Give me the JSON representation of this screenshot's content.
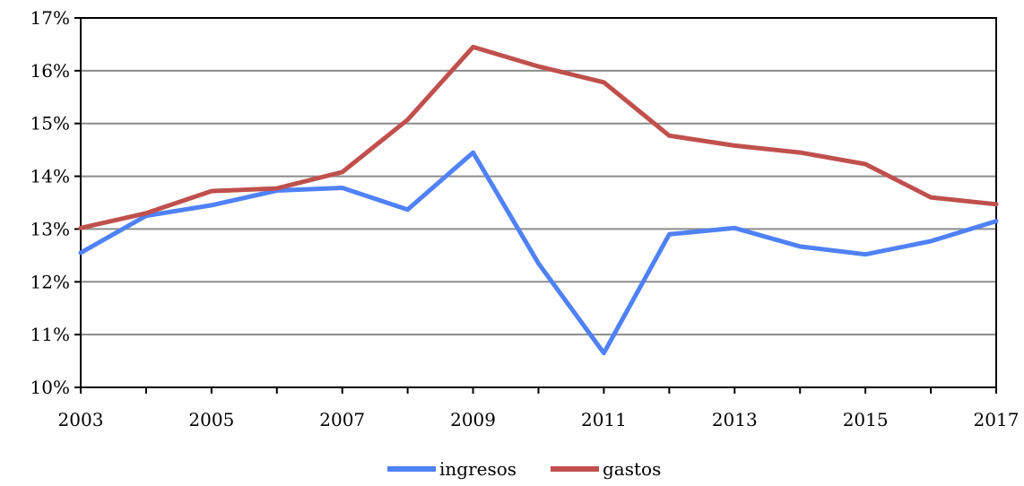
{
  "chart_data": {
    "type": "line",
    "x": [
      2003,
      2004,
      2005,
      2006,
      2007,
      2008,
      2009,
      2010,
      2011,
      2012,
      2013,
      2014,
      2015,
      2016,
      2017
    ],
    "series": [
      {
        "name": "ingresos",
        "color": "#4f81f7",
        "values": [
          12.55,
          13.25,
          13.45,
          13.73,
          13.78,
          13.37,
          14.45,
          12.35,
          10.65,
          12.9,
          13.02,
          12.67,
          12.52,
          12.77,
          13.15
        ]
      },
      {
        "name": "gastos",
        "color": "#c0504d",
        "values": [
          13.02,
          13.3,
          13.72,
          13.77,
          14.08,
          15.07,
          16.45,
          16.08,
          15.78,
          14.77,
          14.58,
          14.45,
          14.23,
          13.6,
          13.47
        ]
      }
    ],
    "ylim": [
      10,
      17
    ],
    "y_ticks": [
      "10%",
      "11%",
      "12%",
      "13%",
      "14%",
      "15%",
      "16%",
      "17%"
    ],
    "x_ticks": [
      "2003",
      "2005",
      "2007",
      "2009",
      "2011",
      "2013",
      "2015",
      "2017"
    ],
    "grid": "horizontal",
    "legend_position": "bottom-center"
  }
}
